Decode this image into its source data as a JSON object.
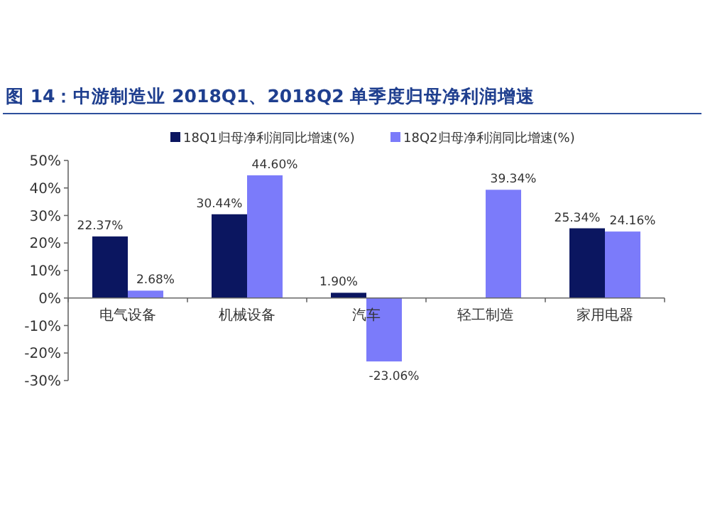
{
  "chart_data": {
    "type": "bar",
    "title": "图 14：中游制造业 2018Q1、2018Q2 单季度归母净利润增速",
    "categories": [
      "电气设备",
      "机械设备",
      "汽车",
      "轻工制造",
      "家用电器"
    ],
    "series": [
      {
        "name": "18Q1归母净利润同比增速(%)",
        "color": "#0b1660",
        "values": [
          22.37,
          30.44,
          1.9,
          null,
          25.34
        ],
        "value_labels": [
          "22.37%",
          "30.44%",
          "1.90%",
          null,
          "25.34%"
        ]
      },
      {
        "name": "18Q2归母净利润同比增速(%)",
        "color": "#7b7bfa",
        "values": [
          2.68,
          44.6,
          -23.06,
          39.34,
          24.16
        ],
        "value_labels": [
          "2.68%",
          "44.60%",
          "-23.06%",
          "39.34%",
          "24.16%"
        ]
      }
    ],
    "ylim": [
      -30,
      50
    ],
    "yticks": [
      {
        "value": -30,
        "label": "-30%"
      },
      {
        "value": -20,
        "label": "-20%"
      },
      {
        "value": -10,
        "label": "-10%"
      },
      {
        "value": 0,
        "label": "0%"
      },
      {
        "value": 10,
        "label": "10%"
      },
      {
        "value": 20,
        "label": "20%"
      },
      {
        "value": 30,
        "label": "30%"
      },
      {
        "value": 40,
        "label": "40%"
      },
      {
        "value": 50,
        "label": "50%"
      }
    ],
    "legend": "top"
  }
}
